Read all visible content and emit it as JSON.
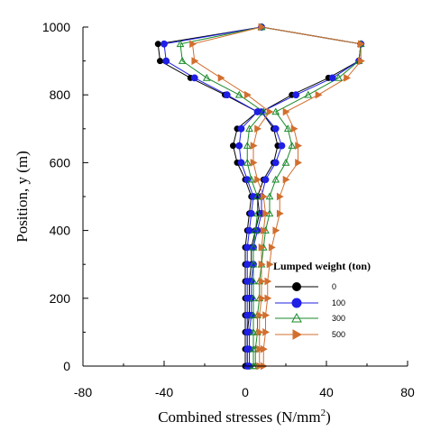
{
  "chart_data": {
    "type": "line",
    "xlabel": "Combined stresses (N/mm",
    "xlabel_sup": "2",
    "xlabel_end": ")",
    "ylabel": "Position, y (m)",
    "xlim": [
      -80,
      80
    ],
    "ylim": [
      0,
      1000
    ],
    "xticks": [
      -80,
      -40,
      0,
      40,
      80
    ],
    "xtick_labels": [
      "-80",
      "-40",
      "0",
      "40",
      "80"
    ],
    "yticks": [
      0,
      200,
      400,
      600,
      800,
      1000
    ],
    "ytick_labels": [
      "0",
      "200",
      "400",
      "600",
      "800",
      "1000"
    ],
    "legend": {
      "title": "Lumped weight (ton)",
      "placement": "right"
    },
    "y": [
      0,
      50,
      100,
      150,
      200,
      250,
      300,
      350,
      400,
      450,
      500,
      550,
      600,
      650,
      700,
      750,
      800,
      850,
      900,
      950,
      1000
    ],
    "series": [
      {
        "name": "0",
        "color": "#000000",
        "marker": "circle",
        "left": [
          0,
          0,
          0,
          0,
          0,
          0,
          0,
          0,
          1,
          2,
          3,
          0,
          -4,
          -6,
          -4,
          6,
          -10,
          -27,
          -42,
          -43,
          8
        ],
        "right": [
          1,
          1,
          1,
          2,
          2,
          2,
          3,
          3,
          5,
          7,
          6,
          9,
          14,
          16,
          14,
          8,
          23,
          41,
          56,
          57,
          8
        ]
      },
      {
        "name": "100",
        "color": "#1f1fe6",
        "marker": "circle",
        "left": [
          1,
          1,
          1,
          1,
          1,
          1,
          1,
          1,
          2,
          3,
          4,
          1,
          -2,
          -3,
          -2,
          6,
          -9,
          -25,
          -39,
          -40,
          8
        ],
        "right": [
          2,
          2,
          2,
          3,
          3,
          3,
          4,
          4,
          6,
          8,
          8,
          10,
          15,
          18,
          15,
          8,
          25,
          43,
          56,
          57,
          8
        ]
      },
      {
        "name": "300",
        "color": "#1a8a2a",
        "marker": "triangle-up",
        "left": [
          4,
          4,
          4,
          4,
          4,
          4,
          4,
          4,
          5,
          6,
          6,
          3,
          1,
          1,
          2,
          9,
          -3,
          -19,
          -31,
          -32,
          8
        ],
        "right": [
          5,
          5,
          6,
          6,
          7,
          7,
          8,
          9,
          10,
          12,
          12,
          15,
          20,
          23,
          21,
          15,
          31,
          46,
          56,
          57,
          8
        ]
      },
      {
        "name": "500",
        "color": "#d26f2e",
        "marker": "triangle-right",
        "left": [
          7,
          7,
          7,
          7,
          8,
          8,
          8,
          8,
          9,
          10,
          9,
          6,
          4,
          4,
          6,
          12,
          1,
          -12,
          -25,
          -26,
          8
        ],
        "right": [
          9,
          9,
          10,
          10,
          11,
          11,
          12,
          13,
          15,
          17,
          17,
          20,
          26,
          26,
          24,
          20,
          36,
          50,
          57,
          57,
          8
        ]
      }
    ]
  }
}
